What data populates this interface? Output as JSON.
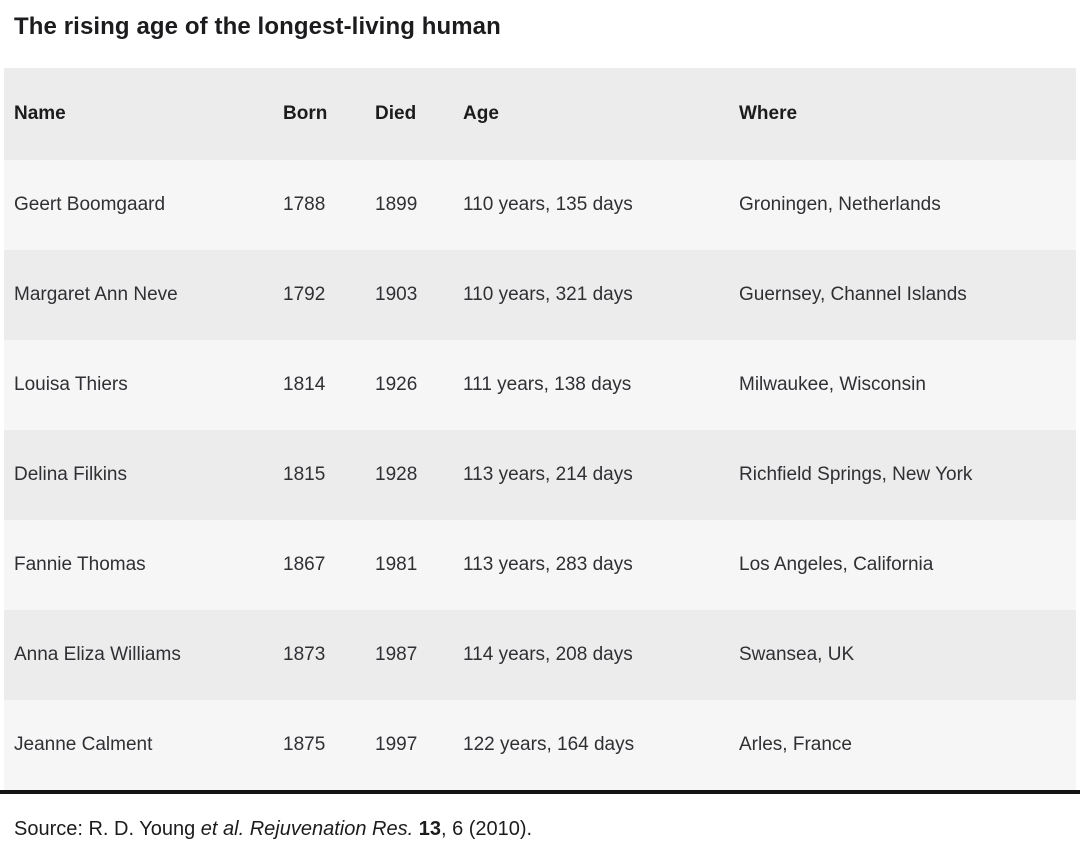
{
  "chart_data": {
    "type": "table",
    "title": "The rising age of the longest-living human",
    "columns": [
      "Name",
      "Born",
      "Died",
      "Age",
      "Where"
    ],
    "rows": [
      {
        "name": "Geert Boomgaard",
        "born": "1788",
        "died": "1899",
        "age": "110 years, 135 days",
        "where": "Groningen, Netherlands"
      },
      {
        "name": "Margaret Ann Neve",
        "born": "1792",
        "died": "1903",
        "age": "110 years, 321 days",
        "where": "Guernsey, Channel Islands"
      },
      {
        "name": "Louisa Thiers",
        "born": "1814",
        "died": "1926",
        "age": "111 years, 138 days",
        "where": "Milwaukee, Wisconsin"
      },
      {
        "name": "Delina Filkins",
        "born": "1815",
        "died": "1928",
        "age": "113 years, 214 days",
        "where": "Richfield Springs, New York"
      },
      {
        "name": "Fannie Thomas",
        "born": "1867",
        "died": "1981",
        "age": "113 years, 283 days",
        "where": "Los Angeles, California"
      },
      {
        "name": "Anna Eliza Williams",
        "born": "1873",
        "died": "1987",
        "age": "114 years, 208 days",
        "where": "Swansea, UK"
      },
      {
        "name": "Jeanne Calment",
        "born": "1875",
        "died": "1997",
        "age": "122 years, 164 days",
        "where": "Arles, France"
      }
    ],
    "layout_hints": {
      "striped_rows": true,
      "header_row": true,
      "bottom_rule": true
    }
  },
  "source": {
    "prefix": "Source: R. D. Young ",
    "italic": "et al. Rejuvenation Res. ",
    "bold": "13",
    "suffix": ", 6 (2010)."
  },
  "colors": {
    "header_bg": "#ececec",
    "row_bg": "#f6f6f6",
    "row_alt_bg": "#ececec",
    "rule": "#141414",
    "text": "#303034",
    "heading_text": "#1c1c1e"
  }
}
